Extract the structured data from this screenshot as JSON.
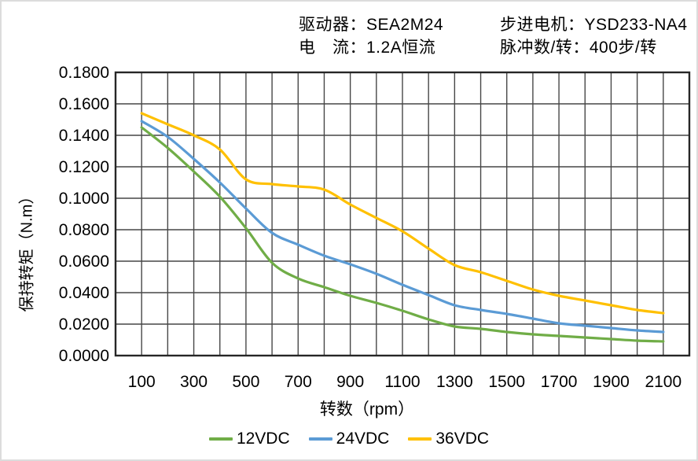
{
  "header": {
    "driver_label": "驱动器：SEA2M24",
    "current_label": "电　流：1.2A恒流",
    "motor_label": "步进电机：YSD233-NA4",
    "pulses_label": "脉冲数/转：400步/转"
  },
  "chart_data": {
    "type": "line",
    "title": "",
    "xlabel": "转数（rpm）",
    "ylabel": "保持转矩（N.m）",
    "xlim": [
      0,
      2200
    ],
    "ylim": [
      0,
      0.18
    ],
    "grid": true,
    "legend_position": "bottom",
    "x": [
      100,
      200,
      300,
      400,
      500,
      600,
      700,
      800,
      900,
      1000,
      1100,
      1200,
      1300,
      1400,
      1500,
      1600,
      1700,
      1800,
      1900,
      2000,
      2100
    ],
    "x_tick_labels": [
      "100",
      "300",
      "500",
      "700",
      "900",
      "1100",
      "1300",
      "1500",
      "1700",
      "1900",
      "2100"
    ],
    "x_ticks": [
      100,
      300,
      500,
      700,
      900,
      1100,
      1300,
      1500,
      1700,
      1900,
      2100
    ],
    "y_ticks": [
      0,
      0.02,
      0.04,
      0.06,
      0.08,
      0.1,
      0.12,
      0.14,
      0.16,
      0.18
    ],
    "y_tick_labels": [
      "0.0000",
      "0.0200",
      "0.0400",
      "0.0600",
      "0.0800",
      "0.1000",
      "0.1200",
      "0.1400",
      "0.1600",
      "0.1800"
    ],
    "series": [
      {
        "name": "12VDC",
        "color": "#70AD47",
        "values": [
          0.145,
          0.132,
          0.117,
          0.101,
          0.081,
          0.059,
          0.049,
          0.0435,
          0.038,
          0.0335,
          0.0285,
          0.023,
          0.0185,
          0.017,
          0.015,
          0.0135,
          0.0125,
          0.0115,
          0.0105,
          0.0095,
          0.009
        ]
      },
      {
        "name": "24VDC",
        "color": "#5B9BD5",
        "values": [
          0.149,
          0.139,
          0.125,
          0.11,
          0.0935,
          0.078,
          0.0705,
          0.0635,
          0.058,
          0.052,
          0.045,
          0.0385,
          0.032,
          0.029,
          0.0265,
          0.0235,
          0.0205,
          0.019,
          0.0175,
          0.016,
          0.015
        ]
      },
      {
        "name": "36VDC",
        "color": "#FFC000",
        "values": [
          0.154,
          0.147,
          0.14,
          0.131,
          0.112,
          0.109,
          0.1075,
          0.1055,
          0.096,
          0.0875,
          0.079,
          0.068,
          0.0575,
          0.053,
          0.0475,
          0.042,
          0.038,
          0.035,
          0.032,
          0.029,
          0.027
        ]
      }
    ],
    "style": {
      "grid_color": "#474747",
      "border_color": "#262626",
      "text_color": "#000000"
    }
  }
}
